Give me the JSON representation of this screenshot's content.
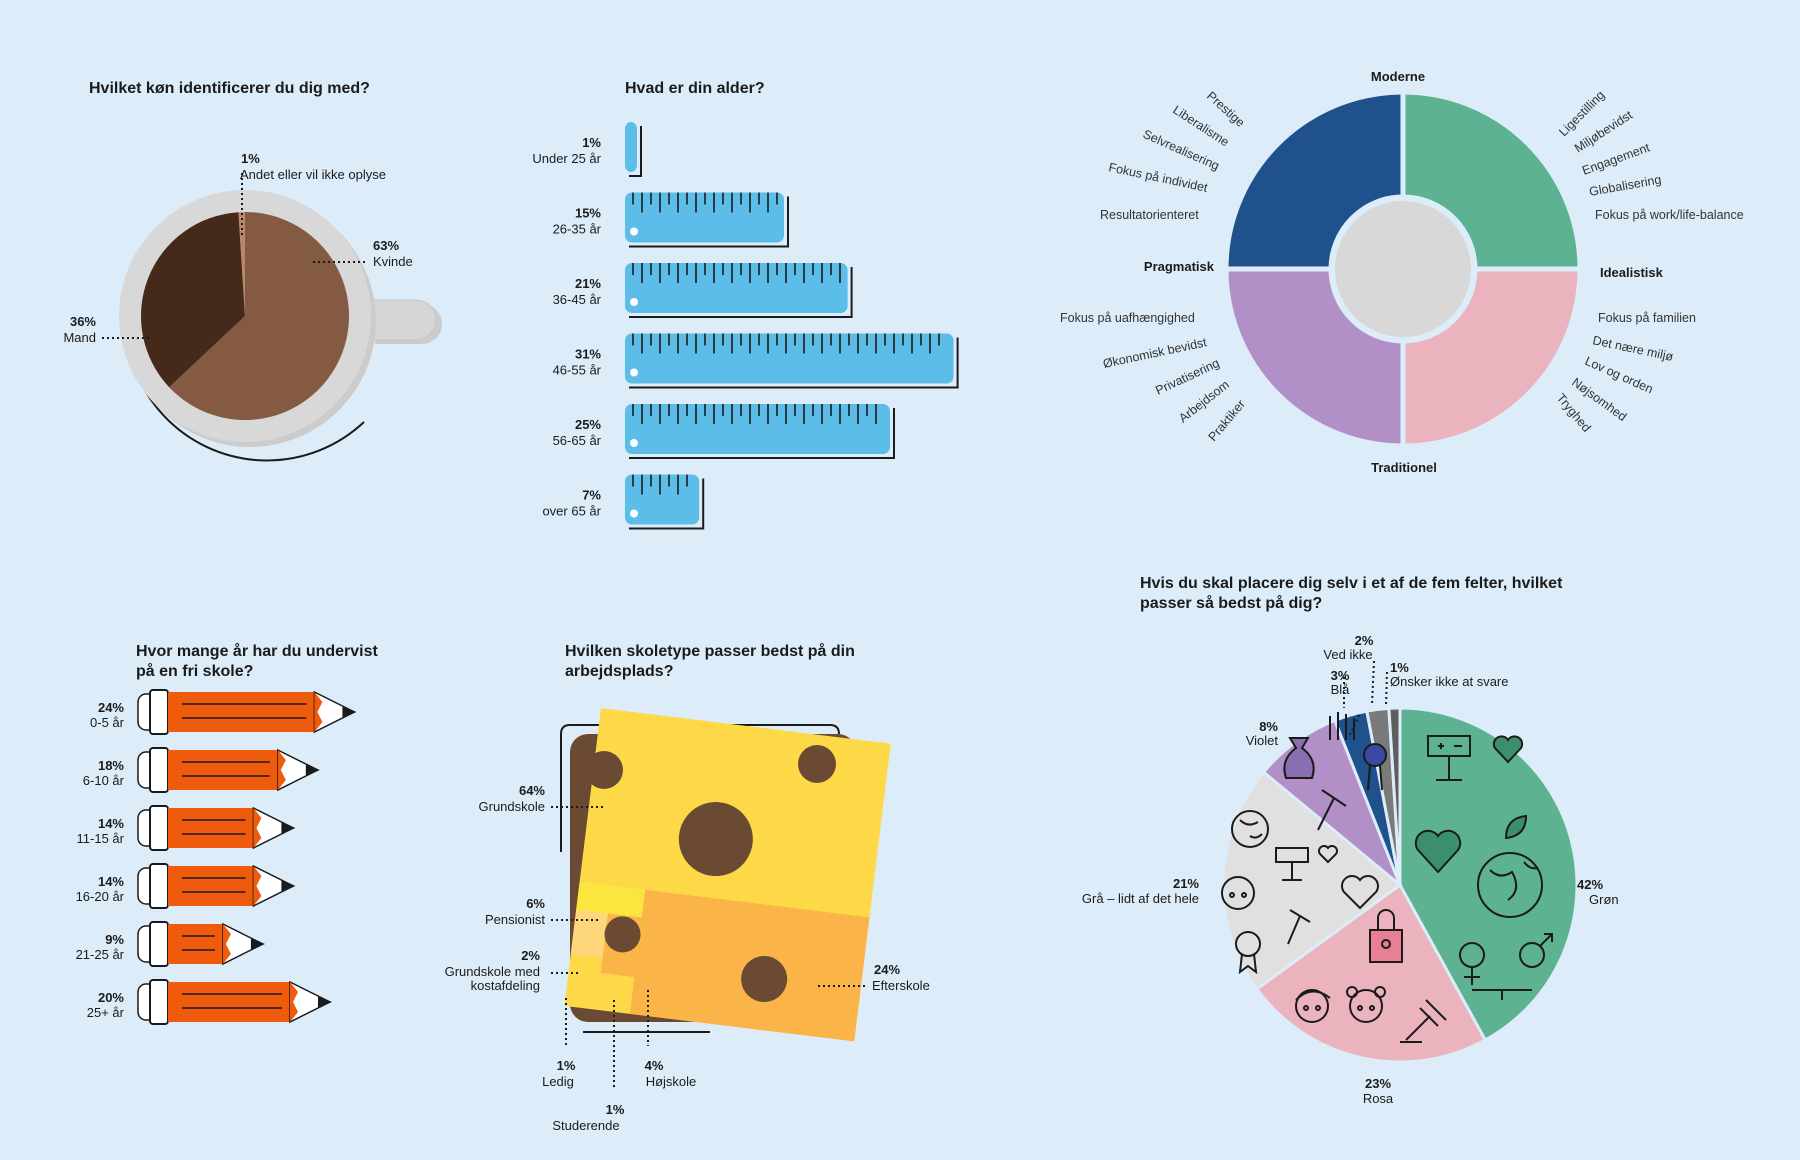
{
  "colors": {
    "background": "#dcedf9",
    "coffee_light": "#845b42",
    "coffee_dark": "#45291a",
    "coffee_other": "#b9876a",
    "ruler": "#5bbde8",
    "pencil": "#ef5b0c",
    "cheese": "#fdd948",
    "cheese_orange": "#fbb447",
    "cheese_yellow": "#fbe640",
    "cheese_light": "#fed77a",
    "bread": "#6a4a33",
    "modern": "#1f528d",
    "idealistic": "#5db391",
    "pragmatic": "#b28fc6",
    "traditional": "#eab3bd",
    "grey": "#e0e0e0",
    "blue": "#1f528d",
    "violet": "#b28fc6",
    "green": "#5db391",
    "rose": "#eab3bd"
  },
  "icons": [
    "coffee-cup-icon",
    "ruler-icon",
    "pencil-icon",
    "cheese-sandwich-icon",
    "scale-icon",
    "heart-icon",
    "earth-icon",
    "gender-icon",
    "lock-icon",
    "child-face-icon",
    "gavel-icon",
    "hammer-icon",
    "rosette-icon",
    "sack-icon",
    "hand-icon"
  ],
  "chart_data": [
    {
      "type": "pie",
      "title": "Hvilket køn identificerer du dig med?",
      "slices": [
        {
          "label": "Kvinde",
          "value": 63,
          "display": "63%"
        },
        {
          "label": "Mand",
          "value": 36,
          "display": "36%"
        },
        {
          "label": "Andet eller vil ikke oplyse",
          "value": 1,
          "display": "1%"
        }
      ]
    },
    {
      "type": "bar",
      "title": "Hvad er din alder?",
      "categories": [
        "Under 25 år",
        "26-35 år",
        "36-45 år",
        "46-55 år",
        "56-65 år",
        "over 65  år"
      ],
      "values": [
        1,
        15,
        21,
        31,
        25,
        7
      ],
      "display": [
        "1%",
        "15%",
        "21%",
        "31%",
        "25%",
        "7%"
      ]
    },
    {
      "type": "bar",
      "title": "Hvor mange år har du undervist på en fri skole?",
      "title_lines": [
        "Hvor mange år har du undervist",
        "på en fri skole?"
      ],
      "categories": [
        "0-5 år",
        "6-10 år",
        "11-15 år",
        "16-20 år",
        "21-25 år",
        "25+ år"
      ],
      "values": [
        24,
        18,
        14,
        14,
        9,
        20
      ],
      "display": [
        "24%",
        "18%",
        "14%",
        "14%",
        "9%",
        "20%"
      ]
    },
    {
      "type": "other",
      "title": "Hvilken skoletype passer bedst på din arbejdsplads?",
      "title_lines": [
        "Hvilken skoletype passer bedst på din",
        "arbejdsplads?"
      ],
      "segments": [
        {
          "label": "Grundskole",
          "value": 64,
          "display": "64%"
        },
        {
          "label": "Efterskole",
          "value": 24,
          "display": "24%"
        },
        {
          "label": "Pensionist",
          "value": 6,
          "display": "6%"
        },
        {
          "label": "Højskole",
          "value": 4,
          "display": "4%"
        },
        {
          "label": "Grundskole med kostafdeling",
          "label_lines": [
            "Grundskole med",
            "kostafdeling"
          ],
          "value": 2,
          "display": "2%"
        },
        {
          "label": "Ledig",
          "value": 1,
          "display": "1%"
        },
        {
          "label": "Studerende",
          "value": 1,
          "display": "1%"
        }
      ]
    },
    {
      "type": "other",
      "title": "",
      "axes": {
        "top": "Moderne",
        "bottom": "Traditionel",
        "left": "Pragmatisk",
        "right": "Idealistisk"
      },
      "quadrants": {
        "modern_pragmatic": [
          "Prestige",
          "Liberalisme",
          "Selvrealisering",
          "Fokus på individet",
          "Resultatorienteret"
        ],
        "modern_idealistic": [
          "Ligestilling",
          "Miljøbevidst",
          "Engagement",
          "Globalisering",
          "Fokus på work/life-balance"
        ],
        "traditional_pragmatic": [
          "Fokus på uafhængighed",
          "Økonomisk bevidst",
          "Privatisering",
          "Arbejdsom",
          "Praktiker"
        ],
        "traditional_idealistic": [
          "Fokus på familien",
          "Det nære miljø",
          "Lov og orden",
          "Nøjsomhed",
          "Tryghed"
        ]
      }
    },
    {
      "type": "pie",
      "title": "Hvis du skal placere dig selv i et af de fem felter, hvilket passer så bedst på dig?",
      "title_lines": [
        "Hvis du skal placere dig selv i et af de fem felter, hvilket",
        "passer så bedst på dig?"
      ],
      "slices": [
        {
          "label": "Grøn",
          "value": 42,
          "display": "42%"
        },
        {
          "label": "Rosa",
          "value": 23,
          "display": "23%"
        },
        {
          "label": "Grå – lidt af det hele",
          "value": 21,
          "display": "21%"
        },
        {
          "label": "Violet",
          "value": 8,
          "display": "8%"
        },
        {
          "label": "Blå",
          "value": 3,
          "display": "3%"
        },
        {
          "label": "Ved ikke",
          "value": 2,
          "display": "2%"
        },
        {
          "label": "Ønsker ikke at svare",
          "value": 1,
          "display": "1%"
        }
      ]
    }
  ]
}
